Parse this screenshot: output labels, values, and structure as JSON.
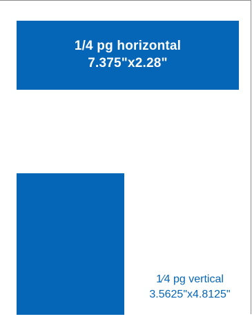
{
  "colors": {
    "ad_fill": "#0565b6",
    "label_text": "#0565b6",
    "frame_border": "#8a8a8a"
  },
  "horizontal_ad": {
    "title": "1/4 pg horizontal",
    "dimensions": "7.375\"x2.28\""
  },
  "vertical_ad": {
    "title": "1⁄4 pg vertical",
    "dimensions": "3.5625\"x4.8125\""
  }
}
